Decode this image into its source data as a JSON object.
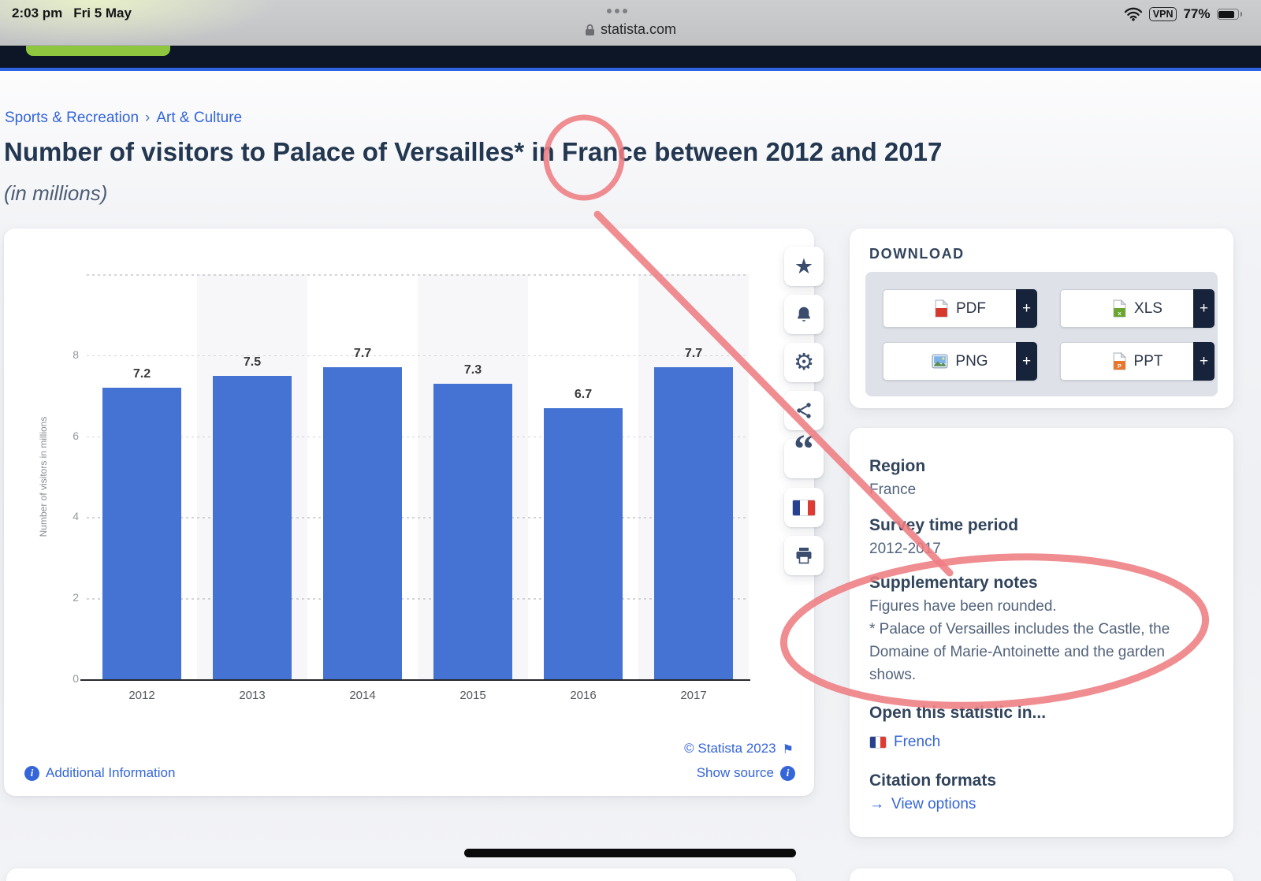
{
  "status_bar": {
    "time": "2:03 pm",
    "date": "Fri 5 May",
    "url": "statista.com",
    "vpn_label": "VPN",
    "battery_percent": "77%"
  },
  "breadcrumb": {
    "items": [
      {
        "label": "Sports & Recreation"
      },
      {
        "label": "Art & Culture"
      }
    ],
    "separator": "›"
  },
  "page": {
    "title": "Number of visitors to Palace of Versailles* in France between 2012 and 2017",
    "subtitle": "(in millions)"
  },
  "chart_data": {
    "type": "bar",
    "title": "Number of visitors to Palace of Versailles* in France between 2012 and 2017",
    "subtitle": "(in millions)",
    "categories": [
      "2012",
      "2013",
      "2014",
      "2015",
      "2016",
      "2017"
    ],
    "values": [
      7.2,
      7.5,
      7.7,
      7.3,
      6.7,
      7.7
    ],
    "xlabel": "",
    "ylabel": "Number of visitors in millions",
    "yticks": [
      0,
      2,
      4,
      6,
      8
    ],
    "ylim": [
      0,
      10
    ],
    "grid": "dotted-horizontal",
    "top_gridline": true,
    "legend": "none",
    "bar_color": "#4473d3"
  },
  "chart_footer": {
    "copyright": "© Statista 2023",
    "flag_icon": "⚑",
    "additional_information": "Additional Information",
    "show_source": "Show source",
    "info_glyph": "i"
  },
  "toolbar": {
    "icons": [
      "favorite-star",
      "alert-bell",
      "settings-gear",
      "share",
      "cite-quote",
      "language-french-flag",
      "print"
    ],
    "star_glyph": "★",
    "gear_glyph": "⚙",
    "quote_glyph": "“"
  },
  "download": {
    "heading": "DOWNLOAD",
    "plus": "+",
    "buttons": [
      {
        "label": "PDF"
      },
      {
        "label": "XLS"
      },
      {
        "label": "PNG"
      },
      {
        "label": "PPT"
      }
    ]
  },
  "details": {
    "region_label": "Region",
    "region_value": "France",
    "survey_label": "Survey time period",
    "survey_value": "2012-2017",
    "notes_label": "Supplementary notes",
    "notes_lines": [
      "Figures have been rounded.",
      "* Palace of Versailles includes the Castle, the",
      "Domaine of Marie-Antoinette and the garden",
      "shows."
    ],
    "open_label": "Open this statistic in...",
    "open_language": "French",
    "citation_label": "Citation formats",
    "view_options_arrow": "→",
    "view_options": "View options"
  },
  "colors": {
    "bar_blue": "#4473d3",
    "link_blue": "#3465d9",
    "heading_navy": "#31445c",
    "title_navy": "#233750",
    "annotation_red": "#ee7d82",
    "nav_dark": "#0c1626",
    "accent_blue": "#2e63e6",
    "green_button": "#8ec63f"
  }
}
